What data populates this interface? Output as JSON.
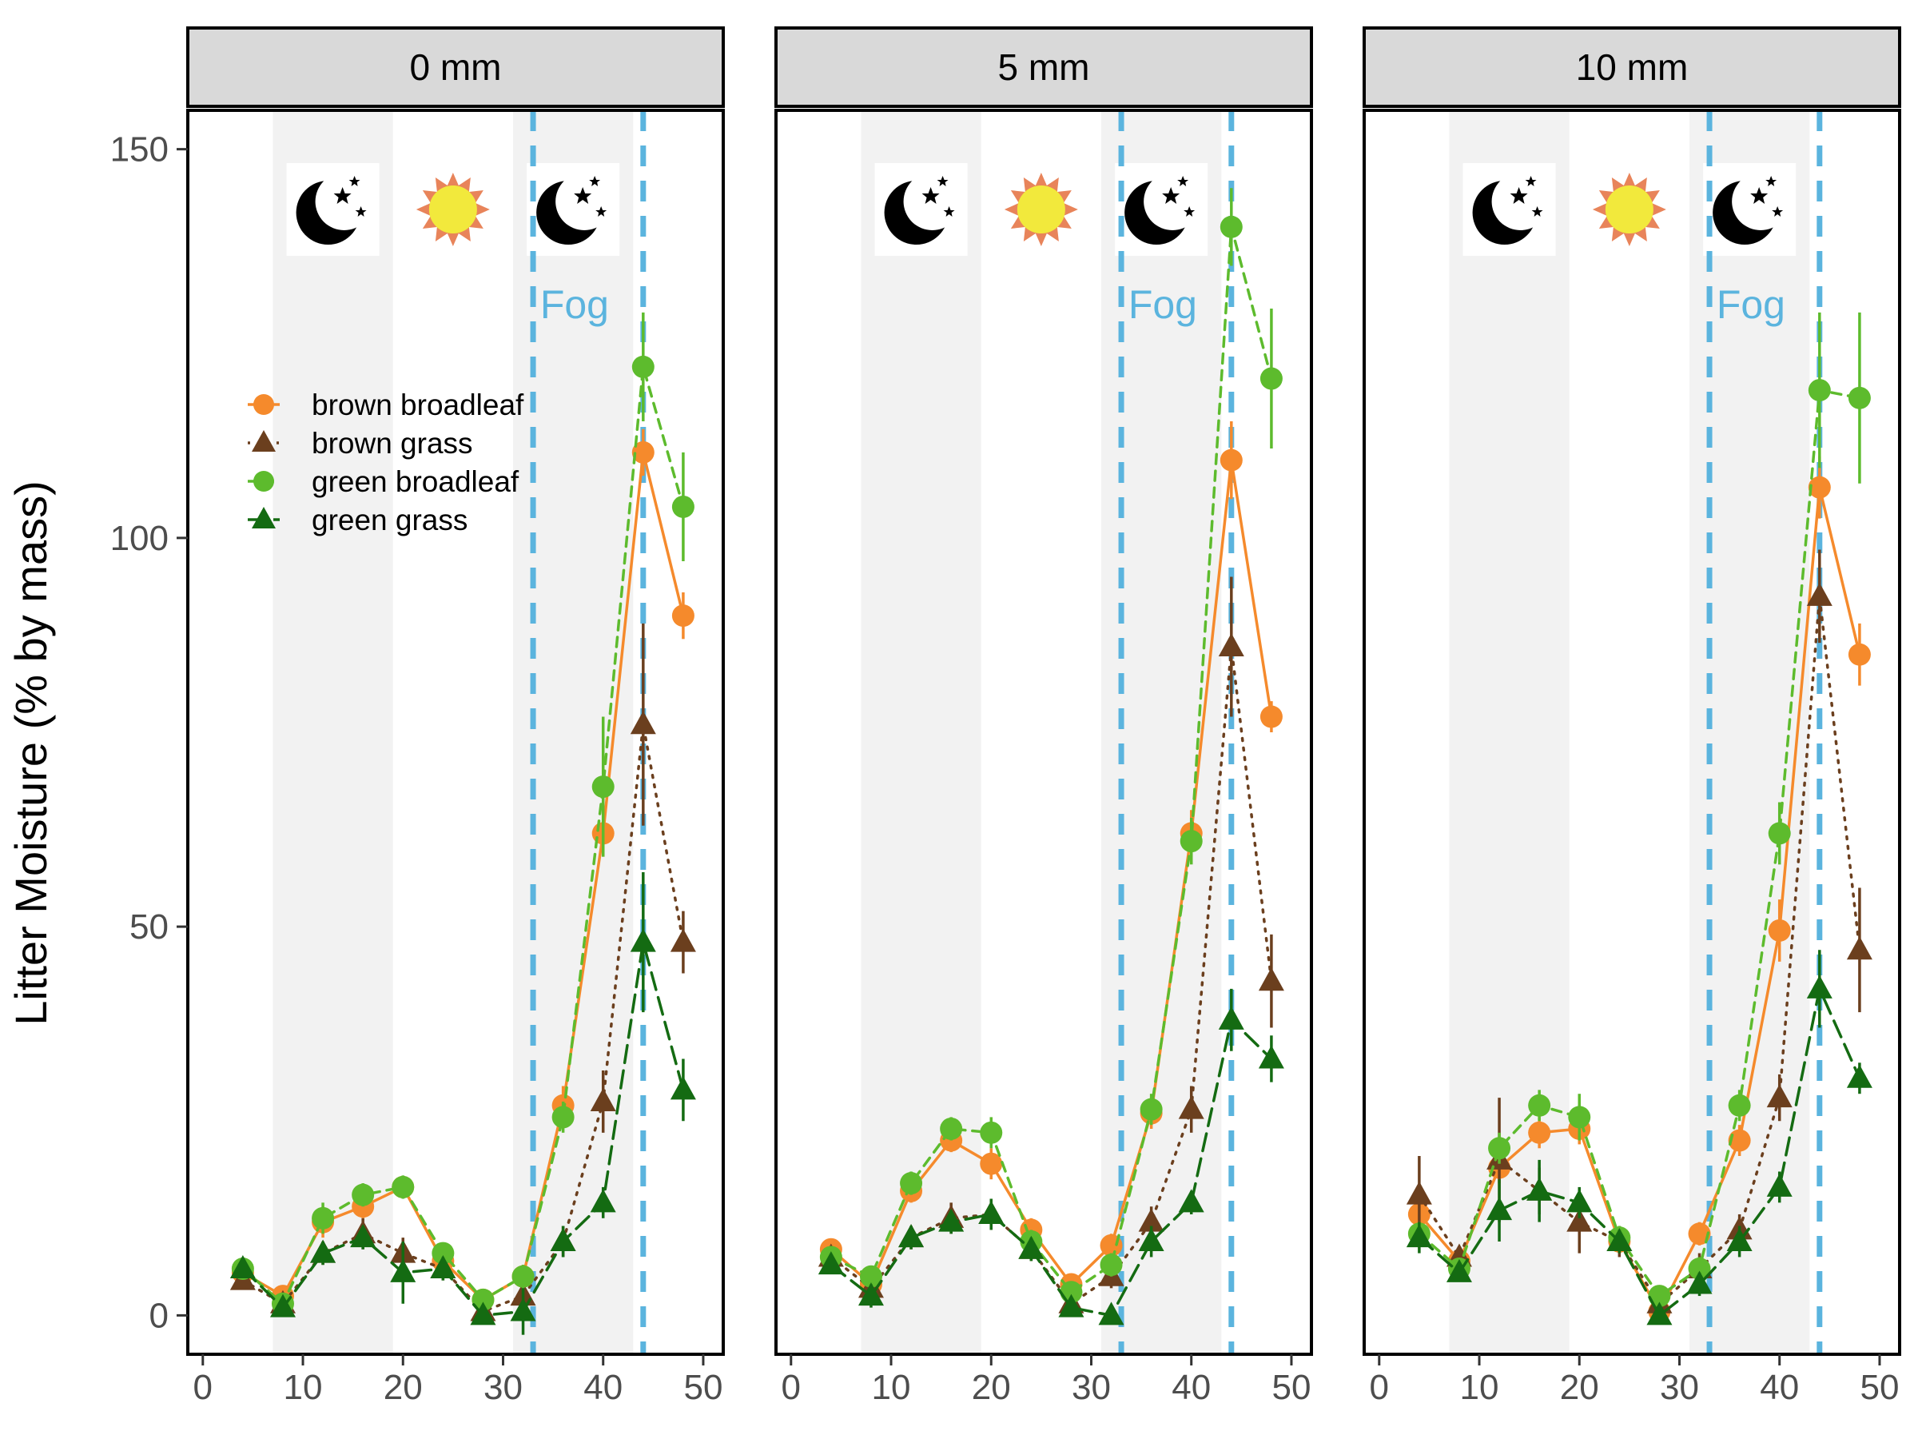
{
  "chart_data": {
    "type": "line",
    "ylabel": "Litter Moisture (% by mass)",
    "xlabel": "",
    "xlim": [
      -1.5,
      52
    ],
    "ylim": [
      -5,
      155
    ],
    "x_ticks": [
      0,
      10,
      20,
      30,
      40,
      50
    ],
    "y_ticks": [
      0,
      50,
      100,
      150
    ],
    "night_bands": [
      [
        7,
        19
      ],
      [
        31,
        43
      ]
    ],
    "fog_lines": [
      33,
      44
    ],
    "fog_label": "Fog",
    "legend_position": "top-left inside first panel",
    "series_styles": {
      "brown broadleaf": {
        "color": "#F58A2C",
        "marker": "circle",
        "dash": "solid"
      },
      "brown grass": {
        "color": "#6B3F1E",
        "marker": "triangle",
        "dash": "dotted"
      },
      "green broadleaf": {
        "color": "#5DBB2D",
        "marker": "circle",
        "dash": "dashed"
      },
      "green grass": {
        "color": "#146B12",
        "marker": "triangle",
        "dash": "longdash"
      }
    },
    "legend": [
      "brown broadleaf",
      "brown grass",
      "green broadleaf",
      "green grass"
    ],
    "x": [
      4,
      8,
      12,
      16,
      20,
      24,
      28,
      32,
      36,
      40,
      44,
      48
    ],
    "panels": [
      {
        "label": "0 mm",
        "series": [
          {
            "name": "brown broadleaf",
            "values": [
              5.5,
              2.5,
              12,
              14,
              16.5,
              7,
              2,
              5,
              27,
              62,
              111,
              90
            ],
            "err": [
              1,
              1,
              2,
              1.5,
              1,
              1,
              1,
              1.5,
              2.5,
              3,
              3,
              3
            ]
          },
          {
            "name": "brown grass",
            "values": [
              4.5,
              1.5,
              8,
              10.5,
              8,
              6,
              0.5,
              2.5,
              9.5,
              27.5,
              76,
              48
            ],
            "err": [
              1,
              1,
              1.5,
              2,
              2,
              1.5,
              1,
              1.5,
              2,
              4,
              13,
              4
            ]
          },
          {
            "name": "green broadleaf",
            "values": [
              6,
              1.5,
              12.5,
              15.5,
              16.5,
              8,
              2,
              5,
              25.5,
              68,
              122,
              104
            ],
            "err": [
              1,
              1,
              2,
              1.5,
              1.5,
              1,
              1,
              1.5,
              2,
              9,
              7,
              7
            ]
          },
          {
            "name": "green grass",
            "values": [
              6,
              1,
              8,
              10,
              5.5,
              6,
              0,
              0.5,
              9.5,
              14.5,
              48,
              29
            ],
            "err": [
              1,
              1,
              1.5,
              1.5,
              4,
              1.5,
              1,
              3,
              2,
              2,
              9,
              4
            ]
          }
        ]
      },
      {
        "label": "5 mm",
        "series": [
          {
            "name": "brown broadleaf",
            "values": [
              8.5,
              4,
              16,
              22.5,
              19.5,
              11,
              4,
              9,
              26,
              62,
              110,
              77
            ],
            "err": [
              1,
              1,
              1.5,
              1.5,
              2,
              1.5,
              1,
              1.5,
              2,
              3,
              5,
              2
            ]
          },
          {
            "name": "brown grass",
            "values": [
              7.5,
              3.5,
              10,
              12.5,
              13,
              8.5,
              1.5,
              5,
              12,
              26.5,
              86,
              43
            ],
            "err": [
              1,
              1,
              1.5,
              2,
              2,
              1.5,
              1,
              1.5,
              2,
              3,
              9,
              6
            ]
          },
          {
            "name": "green broadleaf",
            "values": [
              7.5,
              5,
              17,
              24,
              23.5,
              9.5,
              3,
              6.5,
              26.5,
              61,
              140,
              120.5
            ],
            "err": [
              1,
              1,
              1.5,
              1.5,
              2,
              1.5,
              1,
              1.5,
              2,
              3,
              5,
              9
            ]
          },
          {
            "name": "green grass",
            "values": [
              6.5,
              2.5,
              10,
              12,
              13,
              8.5,
              1,
              0,
              9.5,
              14.5,
              38,
              33
            ],
            "err": [
              1,
              1.5,
              1.5,
              1.5,
              2,
              1.5,
              1,
              1,
              2,
              1.5,
              4,
              3
            ]
          }
        ]
      },
      {
        "label": "10 mm",
        "series": [
          {
            "name": "brown broadleaf",
            "values": [
              13,
              7,
              19,
              23.5,
              24,
              9.5,
              0.5,
              10.5,
              22.5,
              49.5,
              106.5,
              85
            ],
            "err": [
              2,
              1,
              2,
              2,
              2,
              1.5,
              1,
              1.5,
              2,
              4,
              4,
              4
            ]
          },
          {
            "name": "brown grass",
            "values": [
              15.5,
              7.5,
              20,
              16,
              12,
              9.5,
              1.5,
              6,
              11,
              28,
              92.5,
              47
            ],
            "err": [
              5,
              1,
              8,
              3,
              4,
              2,
              1,
              2,
              2,
              3,
              6,
              8
            ]
          },
          {
            "name": "green broadleaf",
            "values": [
              10.5,
              6,
              21.5,
              27,
              25.5,
              10,
              2.5,
              6,
              27,
              62,
              119,
              118
            ],
            "err": [
              1.5,
              1,
              2,
              2,
              3,
              1.5,
              1,
              1.5,
              2,
              4,
              10,
              11
            ]
          },
          {
            "name": "green grass",
            "values": [
              10,
              5.5,
              13.5,
              16,
              14.5,
              9.5,
              0,
              4,
              9.5,
              16.5,
              42,
              30.5
            ],
            "err": [
              2,
              1,
              4,
              4,
              2,
              1.5,
              1,
              1.5,
              2,
              2,
              5,
              2
            ]
          }
        ]
      }
    ]
  }
}
